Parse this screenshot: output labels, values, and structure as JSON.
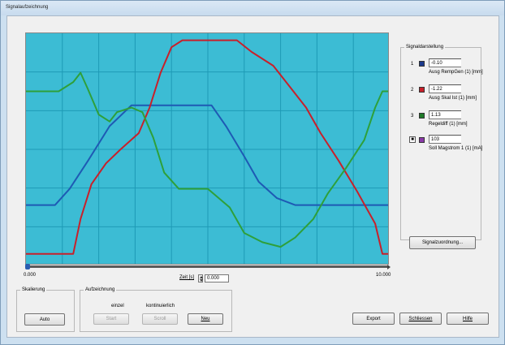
{
  "window": {
    "title": "Signalaufzeichnung"
  },
  "signal_panel": {
    "title": "Signaldarstellung",
    "signals": [
      {
        "num": "1",
        "value": "-0.10",
        "label": "Ausg RempGen (1) [mm]",
        "color": "#1b3a8c"
      },
      {
        "num": "2",
        "value": "-1.22",
        "label": "Ausg Skal Ist (1) [mm]",
        "color": "#c8202a"
      },
      {
        "num": "3",
        "value": "1.13",
        "label": "Regeldiff (1) [mm]",
        "color": "#1e7a28"
      },
      {
        "num": "4",
        "value": "103",
        "label": "Soll Magstrom 1 (1) [mA]",
        "color": "#8a3aa8"
      }
    ],
    "assign_button": "Signalzuordnung..."
  },
  "plot": {
    "background": "#3cbcd4",
    "grid": true,
    "x_min_label": "0.000",
    "x_max_label": "10.000",
    "zeit_label": "Zeit [s]",
    "zeit_value": "0.000"
  },
  "chart_data": {
    "type": "line",
    "x_range": [
      0,
      10
    ],
    "y_range": [
      0,
      1
    ],
    "series": [
      {
        "color": "#1e5ab4",
        "points": [
          [
            0,
            0.26
          ],
          [
            0.8,
            0.26
          ],
          [
            1.2,
            0.33
          ],
          [
            1.7,
            0.45
          ],
          [
            2.3,
            0.6
          ],
          [
            2.9,
            0.69
          ],
          [
            3.5,
            0.69
          ],
          [
            4.5,
            0.69
          ],
          [
            5.1,
            0.69
          ],
          [
            5.5,
            0.6
          ],
          [
            6,
            0.47
          ],
          [
            6.4,
            0.36
          ],
          [
            6.9,
            0.29
          ],
          [
            7.4,
            0.26
          ],
          [
            8.5,
            0.26
          ],
          [
            10,
            0.26
          ]
        ]
      },
      {
        "color": "#c8202a",
        "points": [
          [
            0,
            0.05
          ],
          [
            1.3,
            0.05
          ],
          [
            1.5,
            0.2
          ],
          [
            1.8,
            0.35
          ],
          [
            2.2,
            0.44
          ],
          [
            2.6,
            0.5
          ],
          [
            3.1,
            0.57
          ],
          [
            3.4,
            0.68
          ],
          [
            3.7,
            0.83
          ],
          [
            4,
            0.94
          ],
          [
            4.3,
            0.97
          ],
          [
            5.8,
            0.97
          ],
          [
            6.2,
            0.92
          ],
          [
            6.8,
            0.86
          ],
          [
            7.2,
            0.78
          ],
          [
            7.7,
            0.68
          ],
          [
            8.1,
            0.57
          ],
          [
            8.6,
            0.45
          ],
          [
            9.1,
            0.32
          ],
          [
            9.6,
            0.18
          ],
          [
            9.8,
            0.05
          ],
          [
            10,
            0.05
          ]
        ]
      },
      {
        "color": "#2ea03a",
        "points": [
          [
            0,
            0.75
          ],
          [
            0.9,
            0.75
          ],
          [
            1.3,
            0.79
          ],
          [
            1.5,
            0.83
          ],
          [
            1.7,
            0.76
          ],
          [
            2,
            0.65
          ],
          [
            2.3,
            0.62
          ],
          [
            2.5,
            0.66
          ],
          [
            2.9,
            0.68
          ],
          [
            3.2,
            0.66
          ],
          [
            3.5,
            0.55
          ],
          [
            3.8,
            0.4
          ],
          [
            4.2,
            0.33
          ],
          [
            5,
            0.33
          ],
          [
            5.6,
            0.25
          ],
          [
            6,
            0.14
          ],
          [
            6.5,
            0.1
          ],
          [
            7,
            0.08
          ],
          [
            7.4,
            0.12
          ],
          [
            7.9,
            0.2
          ],
          [
            8.3,
            0.31
          ],
          [
            8.8,
            0.42
          ],
          [
            9.3,
            0.54
          ],
          [
            9.6,
            0.68
          ],
          [
            9.8,
            0.75
          ],
          [
            10,
            0.75
          ]
        ]
      }
    ]
  },
  "scaling_group": {
    "title": "Skalierung",
    "auto_button": "Auto"
  },
  "recording_group": {
    "title": "Aufzeichnung",
    "single_label": "einzel",
    "continuous_label": "kontinuierlich",
    "start_button": "Start",
    "scroll_button": "Scroll",
    "new_button": "Neu"
  },
  "bottom_buttons": {
    "export": "Export",
    "close": "Schliessen",
    "help": "Hilfe"
  }
}
